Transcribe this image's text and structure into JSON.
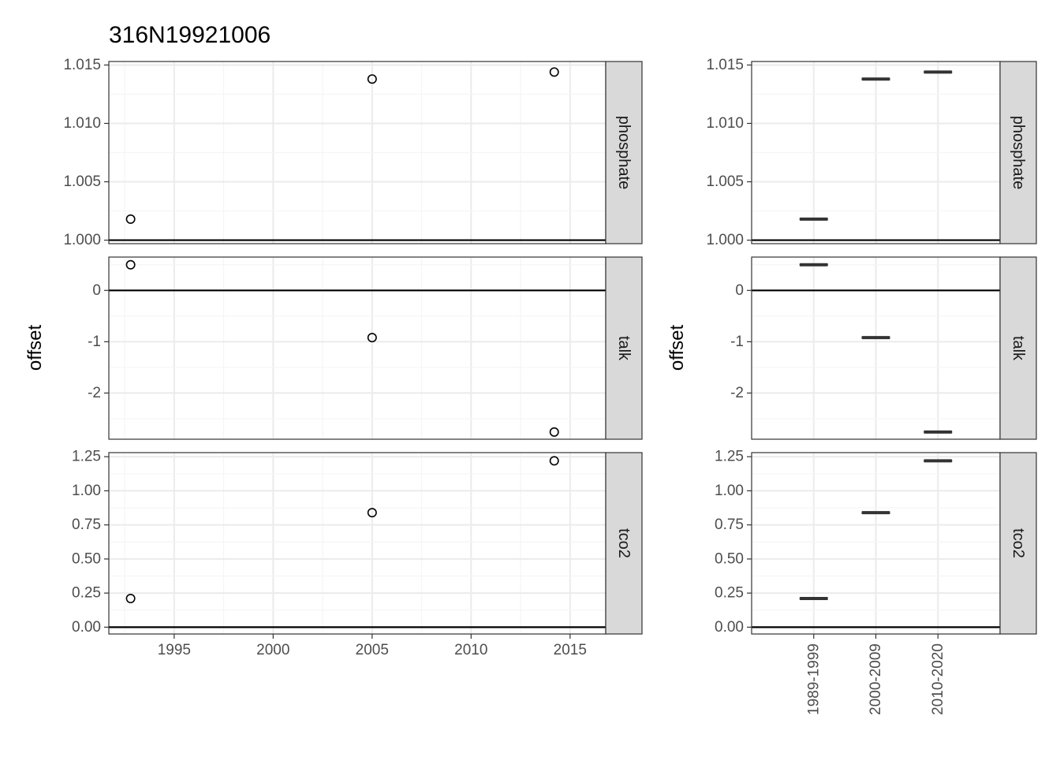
{
  "title": "316N19921006",
  "colors": {
    "panel_border": "#333333",
    "strip_fill": "#d9d9d9",
    "grid_major": "#ebebeb",
    "grid_minor": "#f5f5f5",
    "tick_text": "#4d4d4d",
    "point_stroke": "#000000",
    "zero_line": "#000000"
  },
  "chart_data": [
    {
      "type": "scatter",
      "ylabel": "offset",
      "xlabel": "",
      "x_ticks": [
        1995,
        2000,
        2005,
        2010,
        2015
      ],
      "xlim": [
        1991.7,
        2016.8
      ],
      "grid": true,
      "facets": [
        {
          "label": "phosphate",
          "ylim": [
            0.9997,
            1.0153
          ],
          "y_ticks": [
            "1.000",
            "1.005",
            "1.010",
            "1.015"
          ],
          "y_tick_values": [
            1.0,
            1.005,
            1.01,
            1.015
          ],
          "hline": 1.0,
          "points": [
            {
              "x": 1992.8,
              "y": 1.0018
            },
            {
              "x": 2005.0,
              "y": 1.0138
            },
            {
              "x": 2014.2,
              "y": 1.0144
            }
          ]
        },
        {
          "label": "talk",
          "ylim": [
            -2.9,
            0.65
          ],
          "y_ticks": [
            "0",
            "-1",
            "-2"
          ],
          "y_tick_values": [
            0,
            -1,
            -2
          ],
          "hline": 0,
          "points": [
            {
              "x": 1992.8,
              "y": 0.5
            },
            {
              "x": 2005.0,
              "y": -0.92
            },
            {
              "x": 2014.2,
              "y": -2.76
            }
          ]
        },
        {
          "label": "tco2",
          "ylim": [
            -0.05,
            1.28
          ],
          "y_ticks": [
            "0.00",
            "0.25",
            "0.50",
            "0.75",
            "1.00",
            "1.25"
          ],
          "y_tick_values": [
            0,
            0.25,
            0.5,
            0.75,
            1.0,
            1.25
          ],
          "hline": 0,
          "points": [
            {
              "x": 1992.8,
              "y": 0.21
            },
            {
              "x": 2005.0,
              "y": 0.84
            },
            {
              "x": 2014.2,
              "y": 1.22
            }
          ]
        }
      ]
    },
    {
      "type": "boxplot",
      "ylabel": "offset",
      "xlabel": "",
      "categories": [
        "1989-1999",
        "2000-2009",
        "2010-2020"
      ],
      "grid": true,
      "facets": [
        {
          "label": "phosphate",
          "ylim": [
            0.9997,
            1.0153
          ],
          "y_ticks": [
            "1.000",
            "1.005",
            "1.010",
            "1.015"
          ],
          "y_tick_values": [
            1.0,
            1.005,
            1.01,
            1.015
          ],
          "hline": 1.0,
          "values": [
            1.0018,
            1.0138,
            1.0144
          ]
        },
        {
          "label": "talk",
          "ylim": [
            -2.9,
            0.65
          ],
          "y_ticks": [
            "0",
            "-1",
            "-2"
          ],
          "y_tick_values": [
            0,
            -1,
            -2
          ],
          "hline": 0,
          "values": [
            0.5,
            -0.92,
            -2.76
          ]
        },
        {
          "label": "tco2",
          "ylim": [
            -0.05,
            1.28
          ],
          "y_ticks": [
            "0.00",
            "0.25",
            "0.50",
            "0.75",
            "1.00",
            "1.25"
          ],
          "y_tick_values": [
            0,
            0.25,
            0.5,
            0.75,
            1.0,
            1.25
          ],
          "hline": 0,
          "values": [
            0.21,
            0.84,
            1.22
          ]
        }
      ]
    }
  ]
}
